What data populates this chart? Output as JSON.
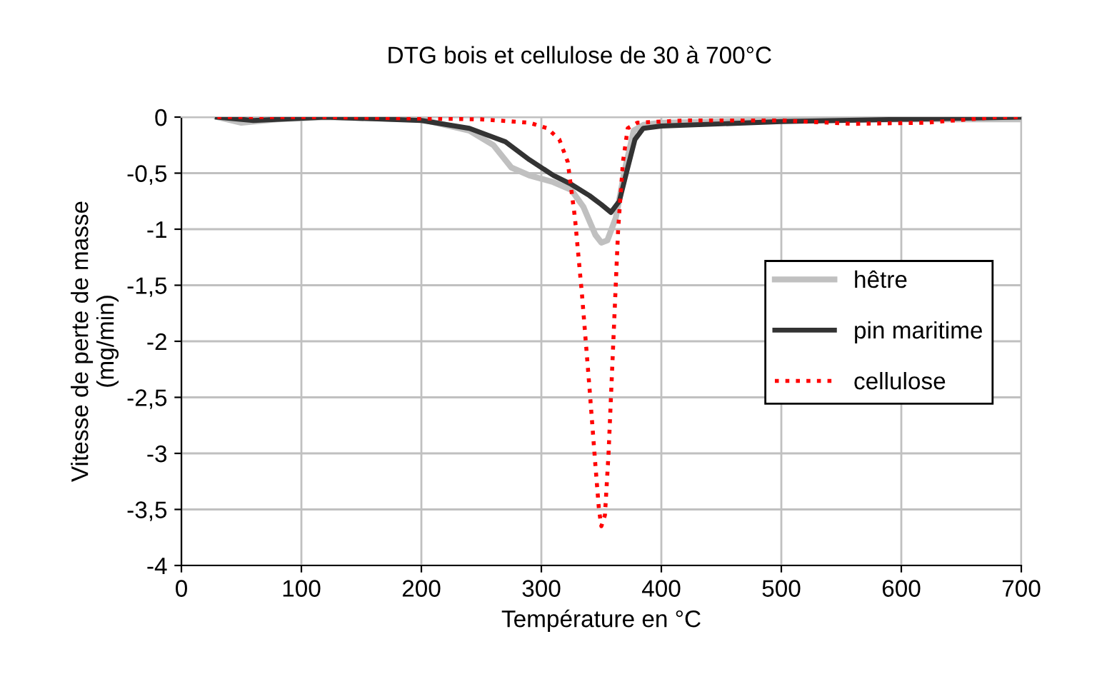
{
  "chart_data": {
    "type": "line",
    "title": "DTG bois et cellulose de 30 à 700°C",
    "xlabel": "Température en °C",
    "ylabel": "Vitesse de perte de masse\n(mg/min)",
    "xlim": [
      0,
      700
    ],
    "xticks": [
      0,
      100,
      200,
      300,
      400,
      500,
      600,
      700
    ],
    "ylim": [
      -4,
      0
    ],
    "yticks": [
      {
        "value": -4,
        "label": "-4"
      },
      {
        "value": -3.5,
        "label": "-3,5"
      },
      {
        "value": -3,
        "label": "-3"
      },
      {
        "value": -2.5,
        "label": "-2,5"
      },
      {
        "value": -2,
        "label": "-2"
      },
      {
        "value": -1.5,
        "label": "-1,5"
      },
      {
        "value": -1,
        "label": "-1"
      },
      {
        "value": -0.5,
        "label": "-0,5"
      },
      {
        "value": 0,
        "label": "0"
      }
    ],
    "grid": true,
    "legend": "center right",
    "marker": "none",
    "series": [
      {
        "name": "hêtre",
        "color": "#c0c0c0",
        "line_style": "solid",
        "x": [
          30,
          50,
          80,
          120,
          200,
          240,
          260,
          275,
          290,
          310,
          325,
          335,
          345,
          350,
          355,
          362,
          370,
          377,
          385,
          400,
          500,
          600,
          700
        ],
        "values": [
          0,
          -0.05,
          -0.02,
          0,
          -0.02,
          -0.12,
          -0.25,
          -0.45,
          -0.52,
          -0.58,
          -0.65,
          -0.8,
          -1.05,
          -1.12,
          -1.1,
          -0.9,
          -0.45,
          -0.12,
          -0.07,
          -0.05,
          -0.03,
          -0.02,
          -0.02
        ]
      },
      {
        "name": "pin maritime",
        "color": "#333333",
        "line_style": "solid",
        "x": [
          30,
          60,
          120,
          200,
          240,
          270,
          290,
          310,
          325,
          340,
          350,
          358,
          365,
          372,
          378,
          385,
          400,
          500,
          600,
          700
        ],
        "values": [
          0,
          -0.03,
          0,
          -0.03,
          -0.1,
          -0.22,
          -0.38,
          -0.52,
          -0.6,
          -0.7,
          -0.78,
          -0.85,
          -0.75,
          -0.45,
          -0.2,
          -0.1,
          -0.08,
          -0.04,
          -0.02,
          0
        ]
      },
      {
        "name": "cellulose",
        "color": "#ff0000",
        "line_style": "dotted",
        "x": [
          30,
          38,
          50,
          120,
          250,
          290,
          305,
          315,
          322,
          328,
          334,
          340,
          345,
          348,
          350,
          353,
          356,
          360,
          364,
          368,
          372,
          380,
          420,
          500,
          560,
          620,
          680,
          700
        ],
        "values": [
          0,
          0,
          0,
          0,
          -0.02,
          -0.05,
          -0.1,
          -0.2,
          -0.4,
          -0.9,
          -1.6,
          -2.4,
          -3.1,
          -3.5,
          -3.65,
          -3.55,
          -3.0,
          -2.0,
          -1.0,
          -0.4,
          -0.1,
          -0.05,
          -0.03,
          -0.03,
          -0.06,
          -0.05,
          0,
          0
        ]
      }
    ]
  }
}
